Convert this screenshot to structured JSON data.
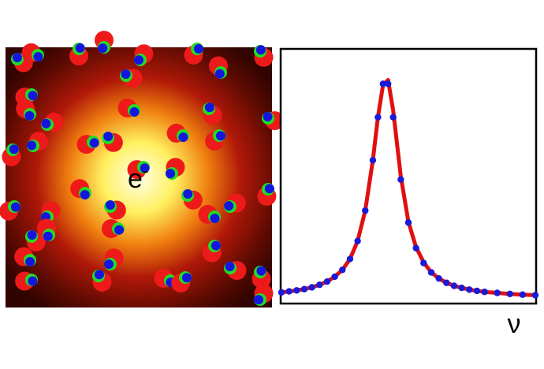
{
  "illustration": {
    "label": "e",
    "label_superscript": "-"
  },
  "chart_data": {
    "type": "scatter-line",
    "x_label": "ν",
    "xlim": [
      0,
      1
    ],
    "ylim": [
      0,
      1
    ],
    "series": [
      {
        "color": "#e01010",
        "style": "line",
        "x": [
          0,
          0.03,
          0.06,
          0.09,
          0.12,
          0.15,
          0.18,
          0.21,
          0.24,
          0.27,
          0.3,
          0.33,
          0.36,
          0.38,
          0.4,
          0.42,
          0.44,
          0.47,
          0.5,
          0.53,
          0.56,
          0.59,
          0.62,
          0.65,
          0.68,
          0.71,
          0.74,
          0.77,
          0.8,
          0.85,
          0.9,
          0.95,
          1.0
        ],
        "values": [
          0.041,
          0.045,
          0.049,
          0.054,
          0.061,
          0.071,
          0.084,
          0.103,
          0.13,
          0.173,
          0.244,
          0.364,
          0.563,
          0.733,
          0.86,
          0.88,
          0.76,
          0.5,
          0.32,
          0.22,
          0.16,
          0.12,
          0.096,
          0.079,
          0.067,
          0.059,
          0.052,
          0.047,
          0.043,
          0.039,
          0.035,
          0.032,
          0.03
        ]
      },
      {
        "color": "#1a1ad8",
        "style": "dots",
        "x": [
          0,
          0.03,
          0.06,
          0.09,
          0.12,
          0.15,
          0.18,
          0.21,
          0.24,
          0.27,
          0.3,
          0.33,
          0.36,
          0.38,
          0.4,
          0.42,
          0.44,
          0.47,
          0.5,
          0.53,
          0.56,
          0.59,
          0.62,
          0.65,
          0.68,
          0.71,
          0.74,
          0.77,
          0.8,
          0.85,
          0.9,
          0.95,
          1.0
        ],
        "values": [
          0.041,
          0.045,
          0.049,
          0.054,
          0.061,
          0.071,
          0.084,
          0.103,
          0.13,
          0.173,
          0.244,
          0.364,
          0.563,
          0.733,
          0.865,
          0.865,
          0.733,
          0.487,
          0.317,
          0.216,
          0.157,
          0.12,
          0.096,
          0.079,
          0.067,
          0.059,
          0.052,
          0.047,
          0.043,
          0.039,
          0.035,
          0.032,
          0.03
        ]
      }
    ]
  }
}
